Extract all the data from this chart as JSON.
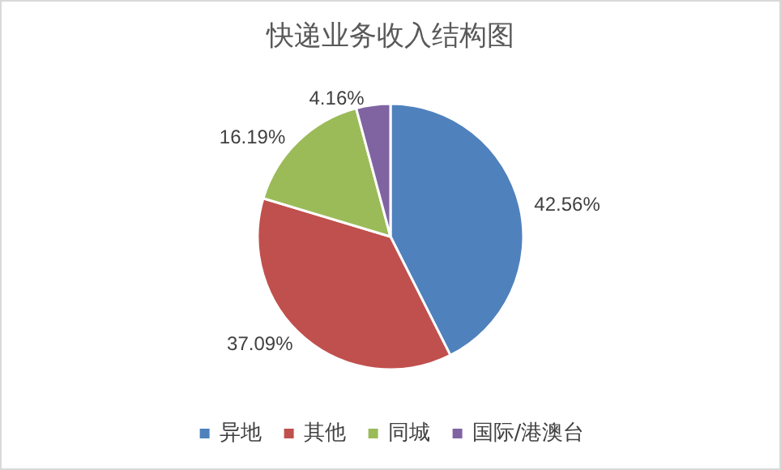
{
  "chart_data": {
    "type": "pie",
    "title": "快递业务收入结构图",
    "categories": [
      "异地",
      "其他",
      "同城",
      "国际/港澳台"
    ],
    "values": [
      42.56,
      37.09,
      16.19,
      4.16
    ],
    "value_labels": [
      "42.56%",
      "37.09%",
      "16.19%",
      "4.16%"
    ],
    "colors": [
      "#4f81bd",
      "#c0504d",
      "#9bbb59",
      "#8064a2"
    ],
    "legend": "bottom"
  }
}
